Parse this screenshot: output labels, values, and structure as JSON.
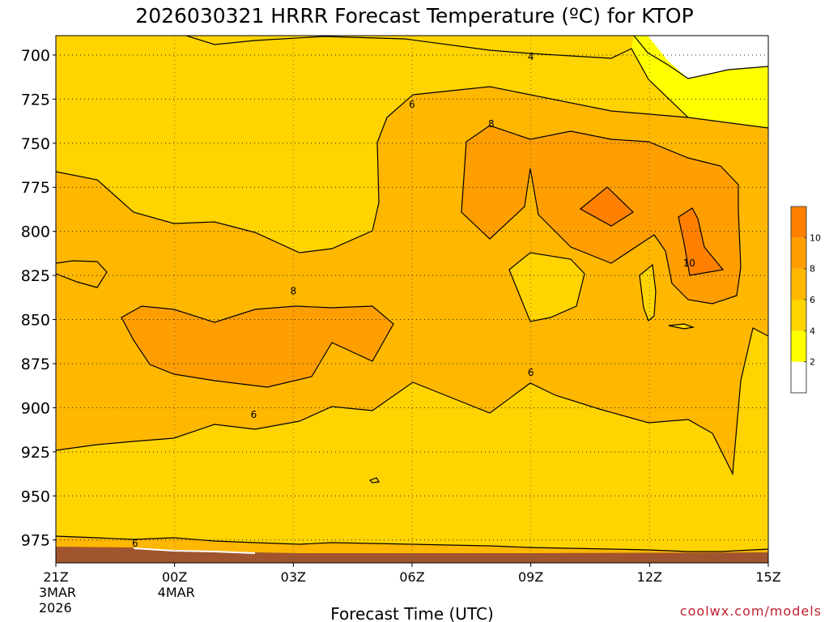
{
  "chart_data": {
    "type": "contour",
    "title": "2026030321 HRRR Forecast Temperature (ºC) for KTOP",
    "xlabel": "Forecast Time (UTC)",
    "ylabel": "",
    "y_axis": {
      "unit": "hPa",
      "inverted": true,
      "ylim": [
        988,
        689
      ],
      "ticks": [
        700,
        725,
        750,
        775,
        800,
        825,
        850,
        875,
        900,
        925,
        950,
        975
      ]
    },
    "x_axis": {
      "xlim_hours": [
        0,
        18
      ],
      "ticks": [
        {
          "hour": 0,
          "label": "21Z",
          "sub1": "3MAR",
          "sub2": "2026"
        },
        {
          "hour": 3,
          "label": "00Z",
          "sub1": "4MAR",
          "sub2": ""
        },
        {
          "hour": 6,
          "label": "03Z",
          "sub1": "",
          "sub2": ""
        },
        {
          "hour": 9,
          "label": "06Z",
          "sub1": "",
          "sub2": ""
        },
        {
          "hour": 12,
          "label": "09Z",
          "sub1": "",
          "sub2": ""
        },
        {
          "hour": 15,
          "label": "12Z",
          "sub1": "",
          "sub2": ""
        },
        {
          "hour": 18,
          "label": "15Z",
          "sub1": "",
          "sub2": ""
        }
      ]
    },
    "grid": true,
    "colorbar": {
      "placement": "right",
      "bins": [
        {
          "min": 0,
          "max": 2,
          "color": "#ffffff"
        },
        {
          "min": 2,
          "max": 4,
          "color": "#ffff00"
        },
        {
          "min": 4,
          "max": 6,
          "color": "#ffd400"
        },
        {
          "min": 6,
          "max": 8,
          "color": "#ffb700"
        },
        {
          "min": 8,
          "max": 10,
          "color": "#ff9e00"
        },
        {
          "min": 10,
          "max": 12,
          "color": "#ff8000"
        }
      ],
      "tick_labels": [
        "2",
        "4",
        "6",
        "8",
        "10"
      ]
    },
    "contour_labels": [
      {
        "value": "4",
        "hour": 12.0,
        "p": 701
      },
      {
        "value": "6",
        "hour": 9.0,
        "p": 728
      },
      {
        "value": "8",
        "hour": 11.0,
        "p": 739
      },
      {
        "value": "8",
        "hour": 6.0,
        "p": 834
      },
      {
        "value": "6",
        "hour": 12.0,
        "p": 880
      },
      {
        "value": "6",
        "hour": 5.0,
        "p": 904
      },
      {
        "value": "10",
        "hour": 16.0,
        "p": 818
      },
      {
        "value": "6",
        "hour": 2.0,
        "p": 977
      }
    ],
    "ground_color": "#a0552e"
  },
  "footer": {
    "credit": "coolwx.com/models"
  }
}
